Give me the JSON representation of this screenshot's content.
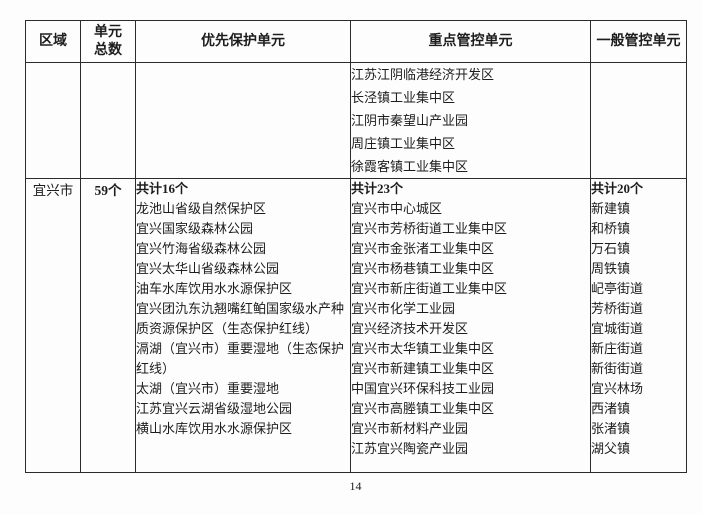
{
  "page_number": "14",
  "table": {
    "header": {
      "region": "区域",
      "unit_total": [
        "单元",
        "总数"
      ],
      "priority": "优先保护单元",
      "key_control": "重点管控单元",
      "general": "一般管控单元"
    },
    "overflow_row": {
      "key_control_items": [
        "江苏江阴临港经济开发区",
        "长泾镇工业集中区",
        "江阴市秦望山产业园",
        "周庄镇工业集中区",
        "徐霞客镇工业集中区"
      ]
    },
    "yixing_row": {
      "region": "宜兴市",
      "unit_total": "59个",
      "priority_total": "共计16个",
      "priority_items": [
        "龙池山省级自然保护区",
        "宜兴国家级森林公园",
        "宜兴竹海省级森林公园",
        "宜兴太华山省级森林公园",
        "油车水库饮用水水源保护区",
        "宜兴团氿东氿翘嘴红鲌国家级水产种质资源保护区（生态保护红线）",
        "滆湖（宜兴市）重要湿地（生态保护红线）",
        "太湖（宜兴市）重要湿地",
        "江苏宜兴云湖省级湿地公园",
        "横山水库饮用水水源保护区"
      ],
      "key_control_total": "共计23个",
      "key_control_items": [
        "宜兴市中心城区",
        "宜兴市芳桥街道工业集中区",
        "宜兴市金张渚工业集中区",
        "宜兴市杨巷镇工业集中区",
        "宜兴市新庄街道工业集中区",
        "宜兴市化学工业园",
        "宜兴经济技术开发区",
        "宜兴市太华镇工业集中区",
        "宜兴市新建镇工业集中区",
        "中国宜兴环保科技工业园",
        "宜兴市高塍镇工业集中区",
        "宜兴市新材料产业园",
        "江苏宜兴陶瓷产业园"
      ],
      "general_total": "共计20个",
      "general_items": [
        "新建镇",
        "和桥镇",
        "万石镇",
        "周铁镇",
        "屺亭街道",
        "芳桥街道",
        "宜城街道",
        "新庄街道",
        "新街街道",
        "宜兴林场",
        "西渚镇",
        "张渚镇",
        "湖父镇"
      ]
    }
  }
}
